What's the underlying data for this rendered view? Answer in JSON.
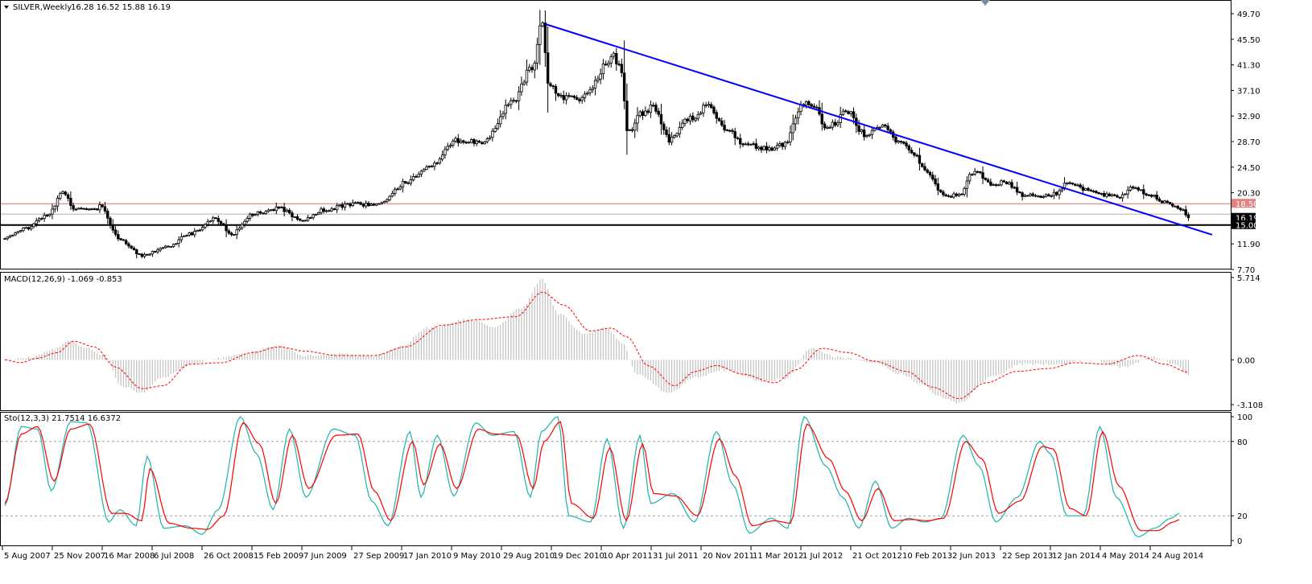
{
  "colors": {
    "background": "#ffffff",
    "frame": "#000000",
    "trendline": "#0000ff",
    "resistance": "#d87070",
    "support": "#000000",
    "price_tag": "#000000",
    "resistance_tag": "#e08080",
    "macd_hist": "#c0c0c0",
    "macd_signal": "#ff0000",
    "sto_main": "#20b2aa",
    "sto_signal": "#ff0000",
    "sto_levels": "#a0a0a0"
  },
  "chart_data": [
    {
      "type": "candlestick",
      "title": "SILVER,Weekly",
      "header_values": "16.28 16.52 15.88 16.19",
      "ylim": [
        7.7,
        49.7
      ],
      "y_ticks": [
        "49.70",
        "45.50",
        "41.30",
        "37.10",
        "32.90",
        "28.70",
        "24.50",
        "20.30",
        "11.90",
        "7.70"
      ],
      "x_ticks": [
        "5 Aug 2007",
        "25 Nov 2007",
        "16 Mar 2008",
        "6 Jul 2008",
        "26 Oct 2008",
        "15 Feb 2009",
        "7 Jun 2009",
        "27 Sep 2009",
        "17 Jan 2010",
        "9 May 2010",
        "29 Aug 2010",
        "19 Dec 2010",
        "10 Apr 2011",
        "31 Jul 2011",
        "20 Nov 2011",
        "11 Mar 2012",
        "1 Jul 2012",
        "21 Oct 2012",
        "10 Feb 2013",
        "2 Jun 2013",
        "22 Sep 2013",
        "12 Jan 2014",
        "4 May 2014",
        "24 Aug 2014"
      ],
      "anchor_closes": [
        [
          0,
          13.0
        ],
        [
          8,
          14.5
        ],
        [
          16,
          16.5
        ],
        [
          22,
          20.3
        ],
        [
          26,
          17.8
        ],
        [
          34,
          17.5
        ],
        [
          36,
          18.0
        ],
        [
          44,
          12.5
        ],
        [
          52,
          10.0
        ],
        [
          62,
          11.5
        ],
        [
          70,
          13.5
        ],
        [
          80,
          16.0
        ],
        [
          86,
          13.5
        ],
        [
          94,
          16.8
        ],
        [
          104,
          17.8
        ],
        [
          112,
          15.8
        ],
        [
          122,
          17.5
        ],
        [
          132,
          18.5
        ],
        [
          142,
          18.3
        ],
        [
          152,
          22.0
        ],
        [
          162,
          25.0
        ],
        [
          172,
          29.0
        ],
        [
          182,
          28.5
        ],
        [
          192,
          35.0
        ],
        [
          200,
          41.0
        ],
        [
          204,
          48.0
        ],
        [
          206,
          38.0
        ],
        [
          212,
          36.0
        ],
        [
          218,
          35.5
        ],
        [
          222,
          37.5
        ],
        [
          228,
          41.5
        ],
        [
          230,
          43.0
        ],
        [
          234,
          40.5
        ],
        [
          236,
          30.0
        ],
        [
          242,
          33.5
        ],
        [
          246,
          34.5
        ],
        [
          252,
          29.0
        ],
        [
          260,
          32.5
        ],
        [
          266,
          34.5
        ],
        [
          274,
          30.5
        ],
        [
          282,
          28.0
        ],
        [
          292,
          27.5
        ],
        [
          296,
          28.5
        ],
        [
          302,
          34.5
        ],
        [
          306,
          35.0
        ],
        [
          312,
          31.0
        ],
        [
          320,
          33.5
        ],
        [
          326,
          30.0
        ],
        [
          332,
          31.5
        ],
        [
          340,
          28.5
        ],
        [
          344,
          27.0
        ],
        [
          350,
          23.5
        ],
        [
          356,
          20.0
        ],
        [
          362,
          19.8
        ],
        [
          368,
          24.0
        ],
        [
          374,
          21.8
        ],
        [
          380,
          22.0
        ],
        [
          386,
          20.0
        ],
        [
          392,
          19.8
        ],
        [
          398,
          20.0
        ],
        [
          404,
          22.2
        ],
        [
          410,
          20.8
        ],
        [
          416,
          20.0
        ],
        [
          422,
          19.5
        ],
        [
          428,
          21.2
        ],
        [
          434,
          20.0
        ],
        [
          440,
          18.8
        ],
        [
          446,
          17.8
        ],
        [
          449,
          16.19
        ]
      ],
      "trendline": {
        "from": [
          "10 Apr 2011",
          48.0
        ],
        "to": [
          "after 24 Aug 2014",
          13.4
        ]
      },
      "horizontal_lines": [
        {
          "label": "18.50",
          "value": 18.5
        },
        {
          "label": "15.00",
          "value": 15.0
        }
      ],
      "last_price": "16.19",
      "highlighted_price_level": 16.8
    },
    {
      "type": "macd",
      "label": "MACD(12,26,9) -1.069 -0.853",
      "ylim": [
        -3.108,
        5.714
      ],
      "y_ticks": [
        "5.714",
        "0.00",
        "-3.108"
      ],
      "hist_anchors": [
        [
          0,
          0.0
        ],
        [
          10,
          0.2
        ],
        [
          20,
          0.8
        ],
        [
          24,
          1.4
        ],
        [
          30,
          0.9
        ],
        [
          38,
          0.3
        ],
        [
          44,
          -1.8
        ],
        [
          52,
          -2.3
        ],
        [
          60,
          -1.2
        ],
        [
          72,
          -0.3
        ],
        [
          80,
          0.1
        ],
        [
          92,
          0.5
        ],
        [
          104,
          1.0
        ],
        [
          114,
          0.3
        ],
        [
          128,
          0.4
        ],
        [
          140,
          0.3
        ],
        [
          150,
          0.9
        ],
        [
          160,
          2.2
        ],
        [
          176,
          2.8
        ],
        [
          186,
          2.3
        ],
        [
          196,
          3.6
        ],
        [
          204,
          5.6
        ],
        [
          210,
          3.2
        ],
        [
          220,
          1.8
        ],
        [
          228,
          2.2
        ],
        [
          234,
          1.2
        ],
        [
          240,
          -1.0
        ],
        [
          252,
          -2.3
        ],
        [
          262,
          -1.2
        ],
        [
          272,
          -0.7
        ],
        [
          288,
          -1.5
        ],
        [
          296,
          -1.3
        ],
        [
          306,
          0.8
        ],
        [
          316,
          0.2
        ],
        [
          330,
          -0.2
        ],
        [
          340,
          -1.0
        ],
        [
          348,
          -1.7
        ],
        [
          354,
          -2.5
        ],
        [
          362,
          -3.0
        ],
        [
          374,
          -1.2
        ],
        [
          386,
          -0.3
        ],
        [
          400,
          -0.3
        ],
        [
          412,
          0.0
        ],
        [
          424,
          -0.5
        ],
        [
          436,
          0.2
        ],
        [
          444,
          -0.3
        ],
        [
          449,
          -1.069
        ]
      ],
      "signal_anchors": [
        [
          0,
          0.0
        ],
        [
          6,
          -0.2
        ],
        [
          12,
          0.1
        ],
        [
          20,
          0.5
        ],
        [
          26,
          1.3
        ],
        [
          34,
          0.9
        ],
        [
          42,
          -0.5
        ],
        [
          52,
          -2.0
        ],
        [
          60,
          -1.8
        ],
        [
          70,
          -0.3
        ],
        [
          82,
          -0.2
        ],
        [
          94,
          0.5
        ],
        [
          104,
          0.9
        ],
        [
          114,
          0.6
        ],
        [
          126,
          0.3
        ],
        [
          140,
          0.3
        ],
        [
          152,
          0.9
        ],
        [
          166,
          2.4
        ],
        [
          180,
          2.8
        ],
        [
          194,
          3.0
        ],
        [
          204,
          4.7
        ],
        [
          212,
          3.8
        ],
        [
          222,
          2.0
        ],
        [
          230,
          2.2
        ],
        [
          236,
          1.6
        ],
        [
          244,
          -0.4
        ],
        [
          254,
          -1.8
        ],
        [
          262,
          -0.8
        ],
        [
          270,
          -0.4
        ],
        [
          280,
          -1.0
        ],
        [
          292,
          -1.6
        ],
        [
          300,
          -0.7
        ],
        [
          310,
          0.8
        ],
        [
          320,
          0.5
        ],
        [
          330,
          -0.1
        ],
        [
          342,
          -0.8
        ],
        [
          352,
          -1.9
        ],
        [
          362,
          -2.7
        ],
        [
          372,
          -1.6
        ],
        [
          384,
          -0.8
        ],
        [
          396,
          -0.6
        ],
        [
          406,
          -0.2
        ],
        [
          418,
          -0.3
        ],
        [
          430,
          0.3
        ],
        [
          440,
          -0.3
        ],
        [
          449,
          -0.853
        ]
      ]
    },
    {
      "type": "stochastic",
      "label": "Sto(12,3,3) 21.7514 16.6372",
      "ylim": [
        0,
        100
      ],
      "y_ticks": [
        "100",
        "80",
        "20",
        "0"
      ],
      "levels": [
        80,
        20
      ],
      "main_anchors": [
        [
          0,
          28
        ],
        [
          6,
          92
        ],
        [
          12,
          90
        ],
        [
          17,
          40
        ],
        [
          24,
          96
        ],
        [
          30,
          95
        ],
        [
          38,
          15
        ],
        [
          42,
          25
        ],
        [
          48,
          12
        ],
        [
          52,
          68
        ],
        [
          58,
          10
        ],
        [
          66,
          12
        ],
        [
          72,
          5
        ],
        [
          78,
          25
        ],
        [
          86,
          100
        ],
        [
          92,
          70
        ],
        [
          98,
          25
        ],
        [
          104,
          90
        ],
        [
          110,
          35
        ],
        [
          120,
          90
        ],
        [
          128,
          85
        ],
        [
          134,
          32
        ],
        [
          140,
          12
        ],
        [
          148,
          88
        ],
        [
          152,
          35
        ],
        [
          158,
          85
        ],
        [
          164,
          36
        ],
        [
          172,
          95
        ],
        [
          178,
          85
        ],
        [
          186,
          88
        ],
        [
          192,
          35
        ],
        [
          196,
          88
        ],
        [
          202,
          100
        ],
        [
          206,
          20
        ],
        [
          214,
          15
        ],
        [
          220,
          82
        ],
        [
          226,
          10
        ],
        [
          232,
          85
        ],
        [
          236,
          30
        ],
        [
          244,
          38
        ],
        [
          252,
          15
        ],
        [
          260,
          88
        ],
        [
          266,
          45
        ],
        [
          272,
          6
        ],
        [
          280,
          18
        ],
        [
          286,
          10
        ],
        [
          292,
          100
        ],
        [
          300,
          60
        ],
        [
          306,
          35
        ],
        [
          312,
          10
        ],
        [
          318,
          48
        ],
        [
          324,
          10
        ],
        [
          330,
          18
        ],
        [
          336,
          15
        ],
        [
          342,
          18
        ],
        [
          350,
          85
        ],
        [
          356,
          60
        ],
        [
          362,
          15
        ],
        [
          370,
          35
        ],
        [
          378,
          80
        ],
        [
          382,
          70
        ],
        [
          388,
          20
        ],
        [
          394,
          20
        ],
        [
          400,
          92
        ],
        [
          406,
          35
        ],
        [
          414,
          3
        ],
        [
          420,
          10
        ],
        [
          426,
          18
        ],
        [
          429,
          22
        ]
      ],
      "signal_anchors": [
        [
          0,
          30
        ],
        [
          6,
          86
        ],
        [
          12,
          92
        ],
        [
          18,
          48
        ],
        [
          24,
          90
        ],
        [
          31,
          94
        ],
        [
          39,
          22
        ],
        [
          44,
          22
        ],
        [
          50,
          16
        ],
        [
          53,
          58
        ],
        [
          60,
          14
        ],
        [
          68,
          10
        ],
        [
          74,
          9
        ],
        [
          80,
          20
        ],
        [
          87,
          95
        ],
        [
          93,
          78
        ],
        [
          99,
          30
        ],
        [
          105,
          85
        ],
        [
          111,
          42
        ],
        [
          121,
          85
        ],
        [
          129,
          86
        ],
        [
          135,
          40
        ],
        [
          141,
          16
        ],
        [
          149,
          80
        ],
        [
          153,
          45
        ],
        [
          159,
          78
        ],
        [
          165,
          42
        ],
        [
          173,
          90
        ],
        [
          179,
          86
        ],
        [
          187,
          85
        ],
        [
          193,
          42
        ],
        [
          197,
          80
        ],
        [
          203,
          96
        ],
        [
          207,
          30
        ],
        [
          215,
          18
        ],
        [
          221,
          75
        ],
        [
          227,
          16
        ],
        [
          233,
          78
        ],
        [
          237,
          38
        ],
        [
          245,
          36
        ],
        [
          253,
          20
        ],
        [
          261,
          82
        ],
        [
          267,
          52
        ],
        [
          273,
          12
        ],
        [
          281,
          16
        ],
        [
          287,
          14
        ],
        [
          293,
          94
        ],
        [
          301,
          66
        ],
        [
          307,
          40
        ],
        [
          313,
          16
        ],
        [
          319,
          42
        ],
        [
          325,
          16
        ],
        [
          331,
          17
        ],
        [
          337,
          16
        ],
        [
          343,
          18
        ],
        [
          351,
          80
        ],
        [
          357,
          66
        ],
        [
          363,
          22
        ],
        [
          371,
          32
        ],
        [
          379,
          76
        ],
        [
          383,
          74
        ],
        [
          389,
          26
        ],
        [
          395,
          20
        ],
        [
          401,
          88
        ],
        [
          407,
          44
        ],
        [
          415,
          8
        ],
        [
          421,
          8
        ],
        [
          427,
          15
        ],
        [
          429,
          17
        ]
      ]
    }
  ]
}
